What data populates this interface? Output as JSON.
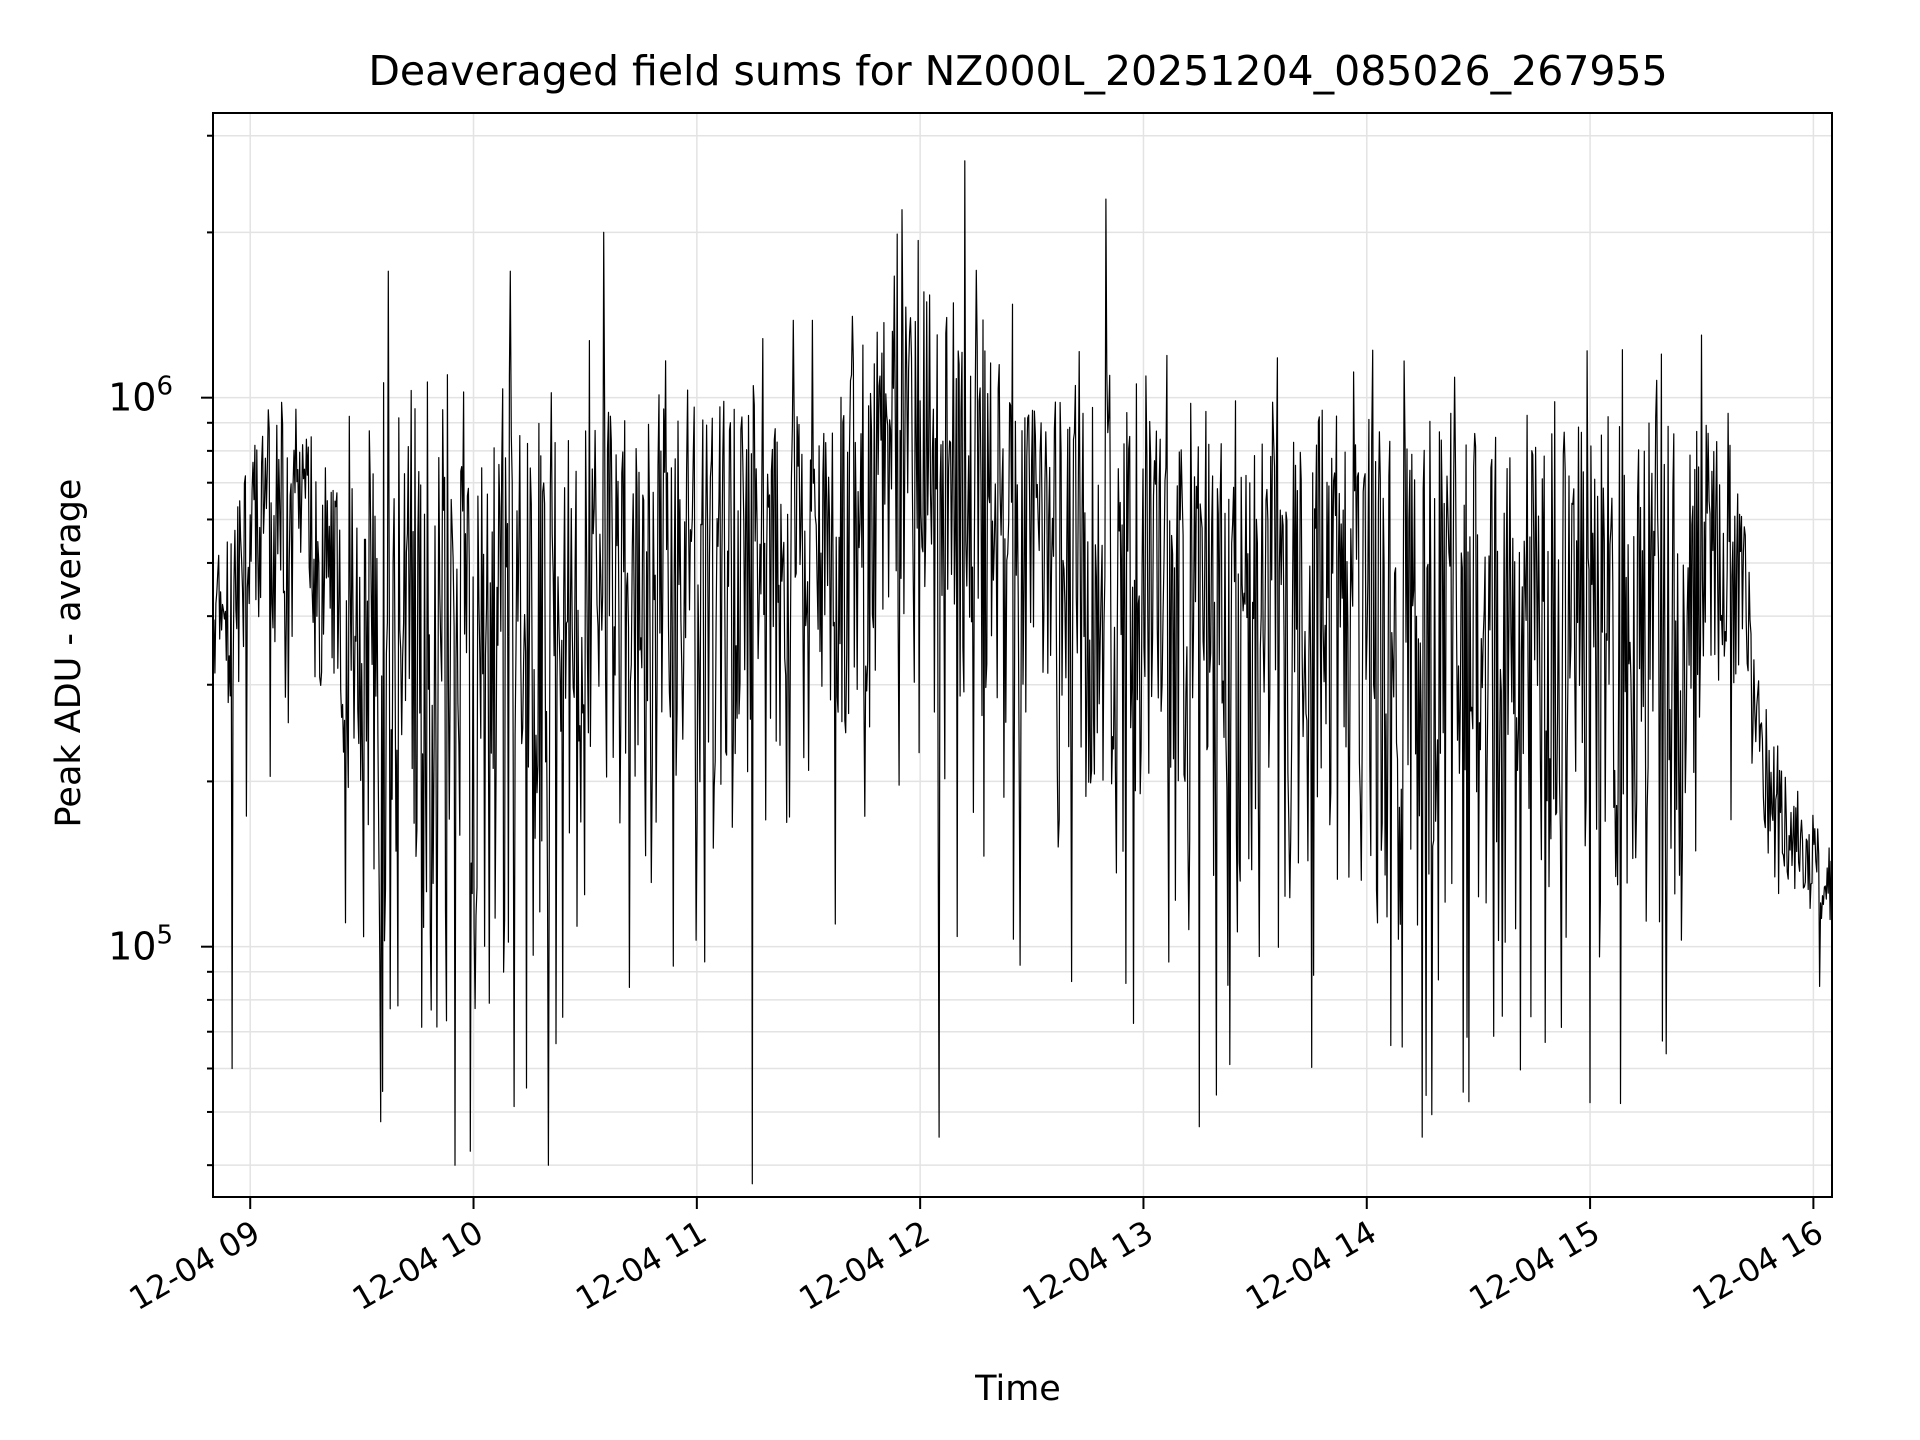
{
  "chart_data": {
    "type": "line",
    "title": "Deaveraged field sums for NZ000L_20251204_085026_267955",
    "xlabel": "Time",
    "ylabel": "Peak ADU - average",
    "x_axis": {
      "kind": "datetime",
      "range": [
        "2025-12-04 08:50",
        "2025-12-04 16:05"
      ],
      "ticks": [
        "12-04 09",
        "12-04 10",
        "12-04 11",
        "12-04 12",
        "12-04 13",
        "12-04 14",
        "12-04 15",
        "12-04 16"
      ]
    },
    "y_axis": {
      "scale": "log",
      "range": [
        35000,
        3300000
      ],
      "ticks": [
        {
          "base": "10",
          "exp": "5",
          "value": 100000
        },
        {
          "base": "10",
          "exp": "6",
          "value": 1000000
        }
      ]
    },
    "grid": true,
    "legend": "none",
    "line_color": "#000000",
    "series": [
      {
        "times": [
          "08:50",
          "09:00",
          "09:05",
          "09:15",
          "09:25",
          "09:35",
          "09:45",
          "09:55",
          "10:05",
          "10:15",
          "10:25",
          "10:35",
          "10:45",
          "10:55",
          "11:05",
          "11:15",
          "11:25",
          "11:35",
          "11:45",
          "11:55",
          "12:05",
          "12:15",
          "12:25",
          "12:35",
          "12:45",
          "12:55",
          "13:05",
          "13:15",
          "13:25",
          "13:35",
          "13:45",
          "13:55",
          "14:05",
          "14:15",
          "14:25",
          "14:35",
          "14:45",
          "14:55",
          "15:05",
          "15:15",
          "15:25",
          "15:35",
          "15:42",
          "15:45",
          "15:55",
          "16:05"
        ],
        "envelope_low": [
          250000,
          280000,
          330000,
          320000,
          150000,
          90000,
          65000,
          50000,
          60000,
          90000,
          110000,
          150000,
          120000,
          130000,
          140000,
          150000,
          160000,
          180000,
          250000,
          300000,
          200000,
          150000,
          160000,
          140000,
          120000,
          110000,
          100000,
          100000,
          90000,
          85000,
          90000,
          95000,
          90000,
          85000,
          90000,
          95000,
          90000,
          90000,
          90000,
          90000,
          95000,
          250000,
          300000,
          130000,
          120000,
          90000
        ],
        "envelope_high": [
          450000,
          800000,
          1000000,
          950000,
          700000,
          800000,
          850000,
          850000,
          900000,
          950000,
          950000,
          950000,
          900000,
          1000000,
          1000000,
          1000000,
          1000000,
          1000000,
          1300000,
          1500000,
          1600000,
          1300000,
          1100000,
          1000000,
          1000000,
          950000,
          900000,
          900000,
          900000,
          900000,
          950000,
          950000,
          950000,
          900000,
          900000,
          900000,
          900000,
          900000,
          900000,
          900000,
          900000,
          900000,
          600000,
          300000,
          200000,
          150000
        ],
        "extremes": [
          {
            "time": "08:55",
            "value": 60000
          },
          {
            "time": "09:35",
            "value": 48000
          },
          {
            "time": "09:55",
            "value": 40000
          },
          {
            "time": "10:20",
            "value": 40000
          },
          {
            "time": "11:15",
            "value": 37000
          },
          {
            "time": "12:05",
            "value": 45000
          },
          {
            "time": "13:15",
            "value": 47000
          },
          {
            "time": "14:15",
            "value": 45000
          },
          {
            "time": "15:00",
            "value": 52000
          },
          {
            "time": "10:35",
            "value": 2000000
          },
          {
            "time": "09:37",
            "value": 1700000
          },
          {
            "time": "10:10",
            "value": 1700000
          },
          {
            "time": "11:55",
            "value": 2200000
          },
          {
            "time": "12:12",
            "value": 2700000
          },
          {
            "time": "12:50",
            "value": 2300000
          },
          {
            "time": "15:30",
            "value": 1300000
          }
        ]
      }
    ]
  }
}
